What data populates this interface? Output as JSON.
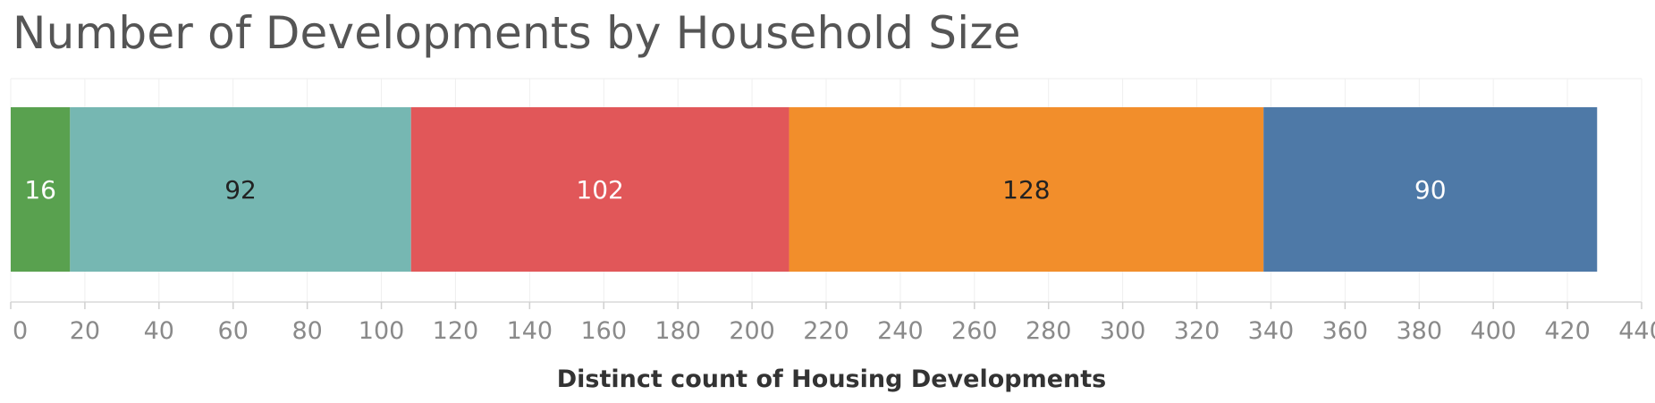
{
  "chart_data": {
    "type": "bar",
    "orientation": "horizontal",
    "stacked": true,
    "title": "Number of Developments by Household Size",
    "xlabel": "Distinct count of Housing Developments",
    "ylabel": "",
    "xlim": [
      0,
      440
    ],
    "xticks": [
      0,
      20,
      40,
      60,
      80,
      100,
      120,
      140,
      160,
      180,
      200,
      220,
      240,
      260,
      280,
      300,
      320,
      340,
      360,
      380,
      400,
      420,
      440
    ],
    "grid": true,
    "series": [
      {
        "values": [
          16
        ],
        "color": "#59a14f",
        "label_color": "#ffffff"
      },
      {
        "values": [
          92
        ],
        "color": "#76b7b2",
        "label_color": "#222222"
      },
      {
        "values": [
          102
        ],
        "color": "#e15759",
        "label_color": "#ffffff"
      },
      {
        "values": [
          128
        ],
        "color": "#f28e2b",
        "label_color": "#222222"
      },
      {
        "values": [
          90
        ],
        "color": "#4e79a7",
        "label_color": "#ffffff"
      }
    ]
  }
}
